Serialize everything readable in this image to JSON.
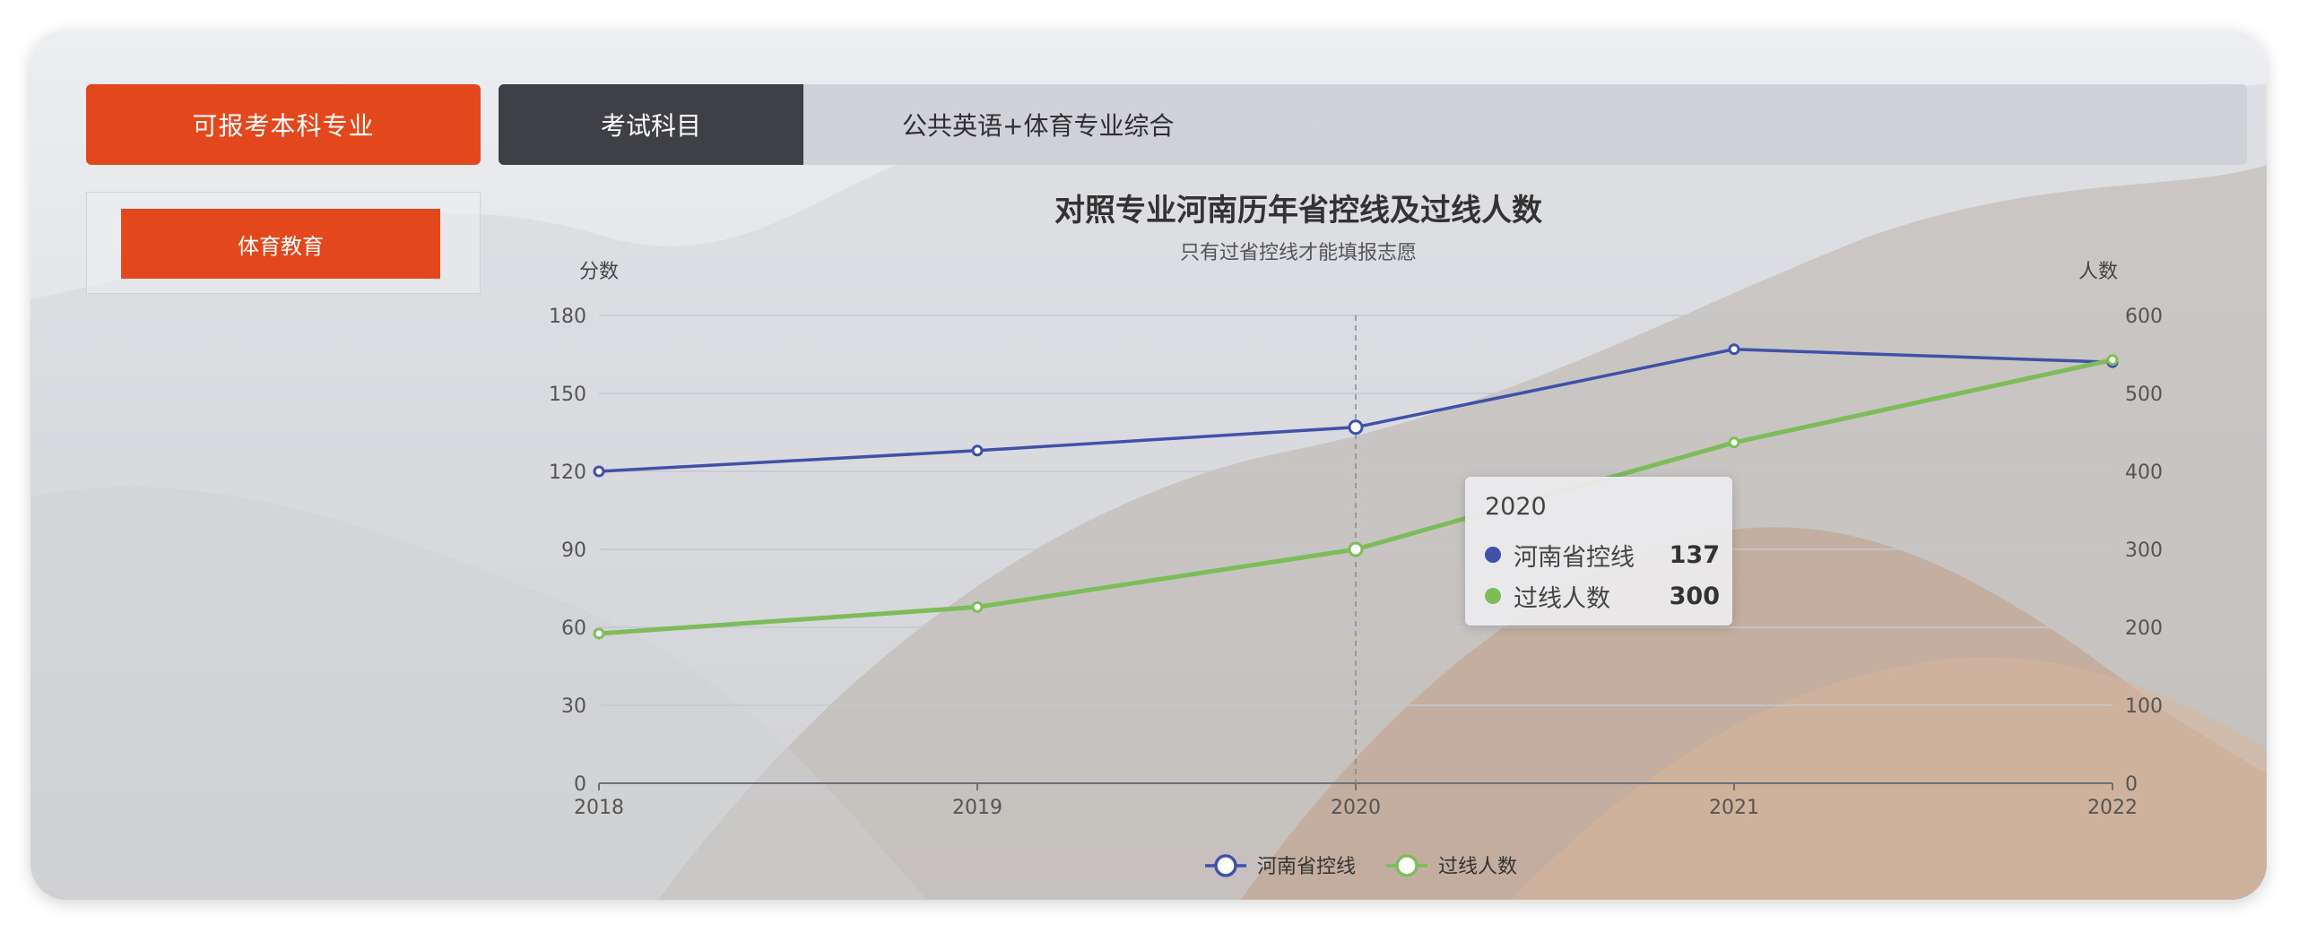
{
  "left_panel": {
    "header_label": "可报考本科专业",
    "majors": [
      "体育教育"
    ]
  },
  "subject_bar": {
    "label": "考试科目",
    "value": "公共英语+体育专业综合"
  },
  "chart_data": {
    "type": "line",
    "title": "对照专业河南历年省控线及过线人数",
    "subtitle": "只有过省控线才能填报志愿",
    "x": [
      "2018",
      "2019",
      "2020",
      "2021",
      "2022"
    ],
    "y_left": {
      "name": "分数",
      "min": 0,
      "max": 180,
      "ticks": [
        0,
        30,
        60,
        90,
        120,
        150,
        180
      ]
    },
    "y_right": {
      "name": "人数",
      "min": 0,
      "max": 600,
      "ticks": [
        0,
        100,
        200,
        300,
        400,
        500,
        600
      ]
    },
    "series": [
      {
        "name": "河南省控线",
        "axis": "left",
        "color": "#3f51a8",
        "values": [
          120,
          128,
          137,
          167,
          162
        ]
      },
      {
        "name": "过线人数",
        "axis": "right",
        "color": "#7cbd5a",
        "values": [
          192,
          226,
          300,
          437,
          543
        ]
      }
    ],
    "legend_position": "bottom-center",
    "grid": true,
    "tooltip": {
      "title": "2020",
      "rows": [
        {
          "name": "河南省控线",
          "value": "137",
          "color": "#3f51a8"
        },
        {
          "name": "过线人数",
          "value": "300",
          "color": "#7cbd5a"
        }
      ]
    }
  }
}
